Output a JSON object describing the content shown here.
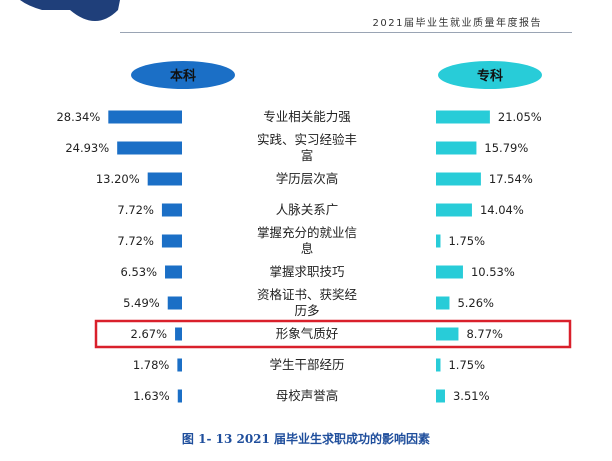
{
  "header": {
    "title": "2021届毕业生就业质量年度报告"
  },
  "caption": "图 1- 13    2021 届毕业生求职成功的影响因素",
  "colors": {
    "left_bar": "#1b6fc6",
    "right_bar": "#28ccd8",
    "left_pill": "#1b6fc6",
    "right_pill": "#28ccd8",
    "highlight_box": "#d9202b",
    "header_shape": "#1f3f7a"
  },
  "chart_data": {
    "type": "bar",
    "orientation": "horizontal-butterfly",
    "series": [
      {
        "name": "本科",
        "values": [
          28.34,
          24.93,
          13.2,
          7.72,
          7.72,
          6.53,
          5.49,
          2.67,
          1.78,
          1.63
        ],
        "labels": [
          "28.34%",
          "24.93%",
          "13.20%",
          "7.72%",
          "7.72%",
          "6.53%",
          "5.49%",
          "2.67%",
          "1.78%",
          "1.63%"
        ]
      },
      {
        "name": "专科",
        "values": [
          21.05,
          15.79,
          17.54,
          14.04,
          1.75,
          10.53,
          5.26,
          8.77,
          1.75,
          3.51
        ],
        "labels": [
          "21.05%",
          "15.79%",
          "17.54%",
          "14.04%",
          "1.75%",
          "10.53%",
          "5.26%",
          "8.77%",
          "1.75%",
          "3.51%"
        ]
      }
    ],
    "categories": [
      [
        "专业相关能力强"
      ],
      [
        "实践、实习经验丰",
        "富"
      ],
      [
        "学历层次高"
      ],
      [
        "人脉关系广"
      ],
      [
        "掌握充分的就业信",
        "息"
      ],
      [
        "掌握求职技巧"
      ],
      [
        "资格证书、获奖经",
        "历多"
      ],
      [
        "形象气质好"
      ],
      [
        "学生干部经历"
      ],
      [
        "母校声誉高"
      ]
    ],
    "highlighted_category_index": 7,
    "xlabel": "",
    "ylabel": ""
  }
}
